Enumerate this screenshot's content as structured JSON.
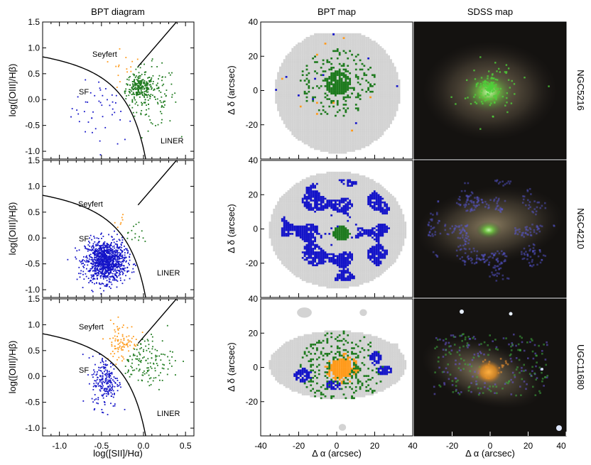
{
  "figure": {
    "col_titles": [
      "BPT diagram",
      "BPT map",
      "SDSS map"
    ],
    "galaxy_names": [
      "NGC5216",
      "NGC4210",
      "UGC11680"
    ]
  },
  "colors": {
    "sf": "#1414c8",
    "seyfert": "#ff9a1a",
    "liner": "#1e7a1e",
    "nodata": "#d3d3d3",
    "frame": "#000000"
  },
  "chart_data": [
    {
      "type": "scatter",
      "title": "BPT diagram",
      "xlabel": "log([SII]/Hα)",
      "ylabel": "log([OIII]/Hβ)",
      "xlim": [
        -1.2,
        0.6
      ],
      "ylim": [
        -1.15,
        1.5
      ],
      "x_ticks": [
        "-1.0",
        "-0.5",
        "0.0",
        "0.5"
      ],
      "y_ticks": [
        "-1.0",
        "-0.5",
        "0.0",
        "0.5",
        "1.0",
        "1.5"
      ],
      "class_labels": [
        "Seyfert",
        "SF",
        "LINER"
      ],
      "demarcation_lines": [
        "0.72/(x-0.32)+1.30",
        "1.89x+0.76"
      ],
      "panels": [
        {
          "galaxy": "NGC5216",
          "series": [
            {
              "class": "SF",
              "n": 45,
              "center": [
                -0.45,
                -0.15
              ],
              "spread": [
                0.2,
                0.35
              ]
            },
            {
              "class": "Seyfert",
              "n": 15,
              "center": [
                -0.22,
                0.48
              ],
              "spread": [
                0.1,
                0.2
              ]
            },
            {
              "class": "LINER",
              "n": 200,
              "center": [
                -0.05,
                0.25
              ],
              "spread": [
                0.08,
                0.12
              ]
            },
            {
              "class": "LINER",
              "n": 150,
              "center": [
                0.05,
                0.05
              ],
              "spread": [
                0.18,
                0.3
              ]
            }
          ]
        },
        {
          "galaxy": "NGC4210",
          "series": [
            {
              "class": "SF",
              "n": 1100,
              "center": [
                -0.45,
                -0.45
              ],
              "spread": [
                0.12,
                0.2
              ]
            },
            {
              "class": "Seyfert",
              "n": 7,
              "center": [
                -0.25,
                0.25
              ],
              "spread": [
                0.05,
                0.1
              ]
            },
            {
              "class": "LINER",
              "n": 15,
              "center": [
                -0.1,
                0.1
              ],
              "spread": [
                0.08,
                0.12
              ]
            }
          ]
        },
        {
          "galaxy": "UGC11680",
          "series": [
            {
              "class": "SF",
              "n": 220,
              "center": [
                -0.45,
                -0.1
              ],
              "spread": [
                0.08,
                0.25
              ]
            },
            {
              "class": "Seyfert",
              "n": 90,
              "center": [
                -0.25,
                0.65
              ],
              "spread": [
                0.1,
                0.2
              ]
            },
            {
              "class": "LINER",
              "n": 140,
              "center": [
                0.0,
                0.3
              ],
              "spread": [
                0.18,
                0.25
              ]
            }
          ]
        }
      ]
    },
    {
      "type": "heatmap",
      "title": "BPT map",
      "xlabel": "Δ α (arcsec)",
      "ylabel": "Δ δ (arcsec)",
      "xlim": [
        -40,
        40
      ],
      "ylim": [
        -40,
        40
      ],
      "x_ticks": [
        "-40",
        "-20",
        "0",
        "20",
        "40"
      ],
      "y_ticks": [
        "40",
        "20",
        "0",
        "-20"
      ],
      "panels": [
        {
          "galaxy": "NGC5216",
          "dominant": "LINER"
        },
        {
          "galaxy": "NGC4210",
          "dominant": "SF"
        },
        {
          "galaxy": "UGC11680",
          "dominant": "Seyfert"
        }
      ]
    },
    {
      "type": "heatmap",
      "title": "SDSS map",
      "xlabel": "Δ α (arcsec)",
      "xlim": [
        -40,
        40
      ],
      "x_ticks": [
        "-20",
        "0",
        "20",
        "40"
      ],
      "panels": [
        {
          "galaxy": "NGC5216"
        },
        {
          "galaxy": "NGC4210"
        },
        {
          "galaxy": "UGC11680"
        }
      ]
    }
  ]
}
